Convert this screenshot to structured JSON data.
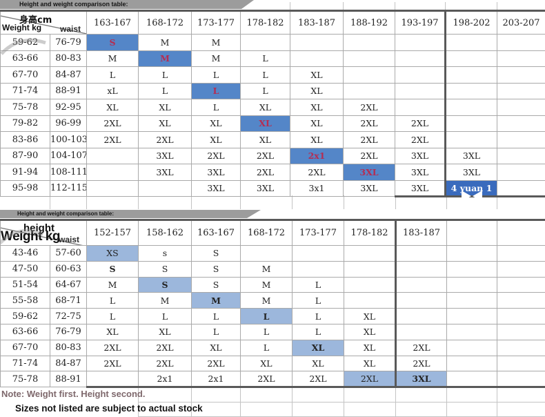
{
  "bars": {
    "table1_label": "Height and weight comparison table:",
    "table2_label": "Height and weight comparison table:"
  },
  "notes": {
    "primary": "Note: Weight first. Height second.",
    "secondary": "Sizes not listed are subject to actual stock"
  },
  "colors": {
    "highlight_strong": "#5486c8",
    "highlight_light": "#9cb7dc",
    "highlight_dark": "#3a6bbd",
    "accent_red": "#b52d52",
    "note_color": "#7e686c",
    "bar_bg": "#9c9c9c"
  },
  "table1": {
    "corner": {
      "height_label": "身高cm",
      "weight_label": "Weight kg",
      "waist_label": "waist"
    },
    "columns": [
      "163-167",
      "168-172",
      "173-177",
      "178-182",
      "183-187",
      "188-192",
      "193-197",
      "198-202",
      "203-207"
    ],
    "rows": [
      {
        "weight": "59-62",
        "waist": "76-79",
        "sizes": [
          {
            "t": "S",
            "h": "s",
            "r": 1
          },
          {
            "t": "M"
          },
          {
            "t": "M"
          },
          null,
          null,
          null,
          null,
          null,
          null
        ]
      },
      {
        "weight": "63-66",
        "waist": "80-83",
        "sizes": [
          {
            "t": "M"
          },
          {
            "t": "M",
            "h": "s",
            "r": 1
          },
          {
            "t": "M"
          },
          {
            "t": "L"
          },
          null,
          null,
          null,
          null,
          null
        ]
      },
      {
        "weight": "67-70",
        "waist": "84-87",
        "sizes": [
          {
            "t": "L"
          },
          {
            "t": "L"
          },
          {
            "t": "L"
          },
          {
            "t": "L"
          },
          {
            "t": "XL"
          },
          null,
          null,
          null,
          null
        ]
      },
      {
        "weight": "71-74",
        "waist": "88-91",
        "sizes": [
          {
            "t": "xL"
          },
          {
            "t": "L"
          },
          {
            "t": "L",
            "h": "s",
            "r": 1
          },
          {
            "t": "L"
          },
          {
            "t": "XL"
          },
          null,
          null,
          null,
          null
        ]
      },
      {
        "weight": "75-78",
        "waist": "92-95",
        "sizes": [
          {
            "t": "XL"
          },
          {
            "t": "XL"
          },
          {
            "t": "L"
          },
          {
            "t": "XL"
          },
          {
            "t": "XL"
          },
          {
            "t": "2XL"
          },
          null,
          null,
          null
        ]
      },
      {
        "weight": "79-82",
        "waist": "96-99",
        "sizes": [
          {
            "t": "2XL"
          },
          {
            "t": "XL"
          },
          {
            "t": "XL"
          },
          {
            "t": "XL",
            "h": "s",
            "r": 1
          },
          {
            "t": "XL"
          },
          {
            "t": "2XL"
          },
          {
            "t": "2XL"
          },
          null,
          null
        ]
      },
      {
        "weight": "83-86",
        "waist": "100-103",
        "sizes": [
          {
            "t": "2XL"
          },
          {
            "t": "2XL"
          },
          {
            "t": "XL"
          },
          {
            "t": "XL"
          },
          {
            "t": "XL"
          },
          {
            "t": "2XL"
          },
          {
            "t": "2XL"
          },
          null,
          null
        ]
      },
      {
        "weight": "87-90",
        "waist": "104-107",
        "sizes": [
          null,
          {
            "t": "3XL"
          },
          {
            "t": "2XL"
          },
          {
            "t": "2XL"
          },
          {
            "t": "2x1",
            "h": "s",
            "r": 1
          },
          {
            "t": "2XL"
          },
          {
            "t": "3XL"
          },
          {
            "t": "3XL"
          },
          null
        ]
      },
      {
        "weight": "91-94",
        "waist": "108-111",
        "sizes": [
          null,
          {
            "t": "3XL"
          },
          {
            "t": "3XL"
          },
          {
            "t": "2XL"
          },
          {
            "t": "2XL"
          },
          {
            "t": "3XL",
            "h": "s",
            "r": 1
          },
          {
            "t": "3XL"
          },
          {
            "t": "3XL"
          },
          null
        ]
      },
      {
        "weight": "95-98",
        "waist": "112-115",
        "sizes": [
          null,
          null,
          {
            "t": "3XL"
          },
          {
            "t": "3XL"
          },
          {
            "t": "3x1"
          },
          {
            "t": "3XL"
          },
          {
            "t": "3XL"
          },
          {
            "t": "4 yuan 1",
            "h": "d"
          },
          null
        ]
      }
    ]
  },
  "table2": {
    "corner": {
      "height_label": "height",
      "weight_label": "Weight kg",
      "waist_label": "waist"
    },
    "columns": [
      "152-157",
      "158-162",
      "163-167",
      "168-172",
      "173-177",
      "178-182",
      "183-187",
      "",
      ""
    ],
    "rows": [
      {
        "weight": "43-46",
        "waist": "57-60",
        "sizes": [
          {
            "t": "XS",
            "h": "l"
          },
          {
            "t": "s"
          },
          {
            "t": "S"
          },
          null,
          null,
          null,
          null,
          null,
          null
        ]
      },
      {
        "weight": "47-50",
        "waist": "60-63",
        "sizes": [
          {
            "t": "S",
            "b": 1
          },
          {
            "t": "S"
          },
          {
            "t": "S"
          },
          {
            "t": "M"
          },
          null,
          null,
          null,
          null,
          null
        ]
      },
      {
        "weight": "51-54",
        "waist": "64-67",
        "sizes": [
          {
            "t": "M"
          },
          {
            "t": "S",
            "h": "l",
            "b": 1
          },
          {
            "t": "S"
          },
          {
            "t": "M"
          },
          {
            "t": "L"
          },
          null,
          null,
          null,
          null
        ]
      },
      {
        "weight": "55-58",
        "waist": "68-71",
        "sizes": [
          {
            "t": "L"
          },
          {
            "t": "M"
          },
          {
            "t": "M",
            "h": "l",
            "b": 1
          },
          {
            "t": "M"
          },
          {
            "t": "L"
          },
          null,
          null,
          null,
          null
        ]
      },
      {
        "weight": "59-62",
        "waist": "72-75",
        "sizes": [
          {
            "t": "L"
          },
          {
            "t": "L"
          },
          {
            "t": "L"
          },
          {
            "t": "L",
            "h": "l",
            "b": 1
          },
          {
            "t": "L"
          },
          {
            "t": "XL"
          },
          null,
          null,
          null
        ]
      },
      {
        "weight": "63-66",
        "waist": "76-79",
        "sizes": [
          {
            "t": "XL"
          },
          {
            "t": "XL"
          },
          {
            "t": "L"
          },
          {
            "t": "L"
          },
          {
            "t": "L"
          },
          {
            "t": "XL"
          },
          null,
          null,
          null
        ]
      },
      {
        "weight": "67-70",
        "waist": "80-83",
        "sizes": [
          {
            "t": "2XL"
          },
          {
            "t": "2XL"
          },
          {
            "t": "XL"
          },
          {
            "t": "L"
          },
          {
            "t": "XL",
            "h": "l",
            "b": 1
          },
          {
            "t": "XL"
          },
          {
            "t": "2XL"
          },
          null,
          null
        ]
      },
      {
        "weight": "71-74",
        "waist": "84-87",
        "sizes": [
          {
            "t": "2XL"
          },
          {
            "t": "2XL"
          },
          {
            "t": "2XL"
          },
          {
            "t": "XL"
          },
          {
            "t": "XL"
          },
          {
            "t": "XL"
          },
          {
            "t": "2XL"
          },
          null,
          null
        ]
      },
      {
        "weight": "75-78",
        "waist": "88-91",
        "sizes": [
          null,
          {
            "t": "2x1"
          },
          {
            "t": "2x1"
          },
          {
            "t": "2XL"
          },
          {
            "t": "2XL"
          },
          {
            "t": "2XL",
            "h": "l"
          },
          {
            "t": "3XL",
            "h": "l",
            "b": 1
          },
          null,
          null
        ]
      }
    ]
  }
}
